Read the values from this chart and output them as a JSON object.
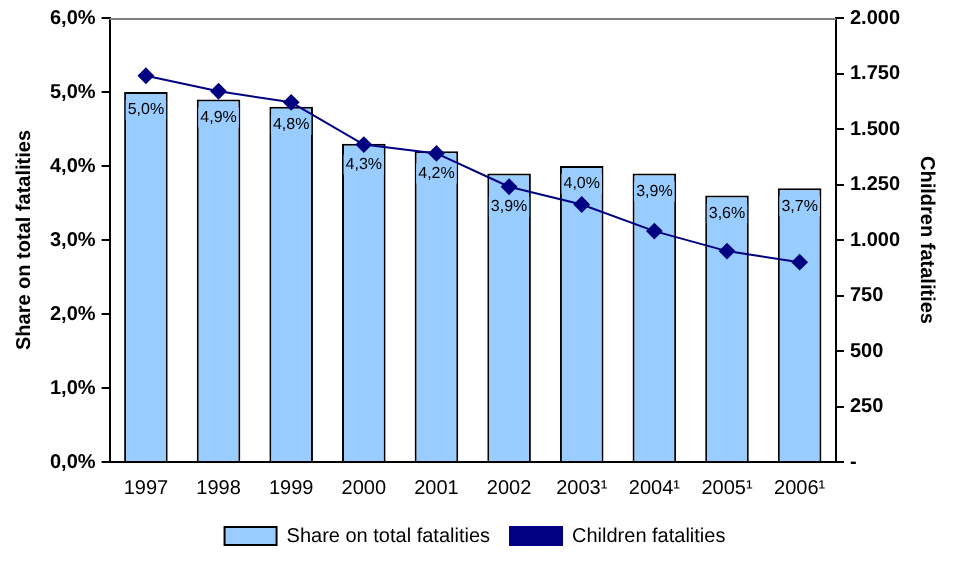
{
  "chart_data": {
    "type": "bar",
    "categories": [
      "1997",
      "1998",
      "1999",
      "2000",
      "2001",
      "2002",
      "2003¹",
      "2004¹",
      "2005¹",
      "2006¹"
    ],
    "ylabel": "Share on total fatalities",
    "y2label": "Children fatalities",
    "ylim": [
      0,
      6
    ],
    "yticks": [
      {
        "value": 0,
        "label": "0,0%"
      },
      {
        "value": 1,
        "label": "1,0%"
      },
      {
        "value": 2,
        "label": "2,0%"
      },
      {
        "value": 3,
        "label": "3,0%"
      },
      {
        "value": 4,
        "label": "4,0%"
      },
      {
        "value": 5,
        "label": "5,0%"
      },
      {
        "value": 6,
        "label": "6,0%"
      }
    ],
    "y2lim": [
      0,
      2000
    ],
    "y2ticks": [
      {
        "value": 0,
        "label": "-"
      },
      {
        "value": 250,
        "label": "250"
      },
      {
        "value": 500,
        "label": "500"
      },
      {
        "value": 750,
        "label": "750"
      },
      {
        "value": 1000,
        "label": "1.000"
      },
      {
        "value": 1250,
        "label": "1.250"
      },
      {
        "value": 1500,
        "label": "1.500"
      },
      {
        "value": 1750,
        "label": "1.750"
      },
      {
        "value": 2000,
        "label": "2.000"
      }
    ],
    "series": [
      {
        "name": "Share on total fatalities",
        "color": "#99ccff",
        "values": [
          5.0,
          4.9,
          4.8,
          4.3,
          4.2,
          3.9,
          4.0,
          3.9,
          3.6,
          3.7
        ],
        "value_labels": [
          "5,0%",
          "4,9%",
          "4,8%",
          "4,3%",
          "4,2%",
          "3,9%",
          "4,0%",
          "3,9%",
          "3,6%",
          "3,7%"
        ]
      },
      {
        "name": "Children fatalities",
        "type": "line",
        "axis": "y2",
        "color": "#000080",
        "marker": "diamond",
        "values": [
          1740,
          1670,
          1620,
          1430,
          1390,
          1240,
          1160,
          1040,
          950,
          900
        ]
      }
    ],
    "legend": "bottom",
    "grid": false
  }
}
